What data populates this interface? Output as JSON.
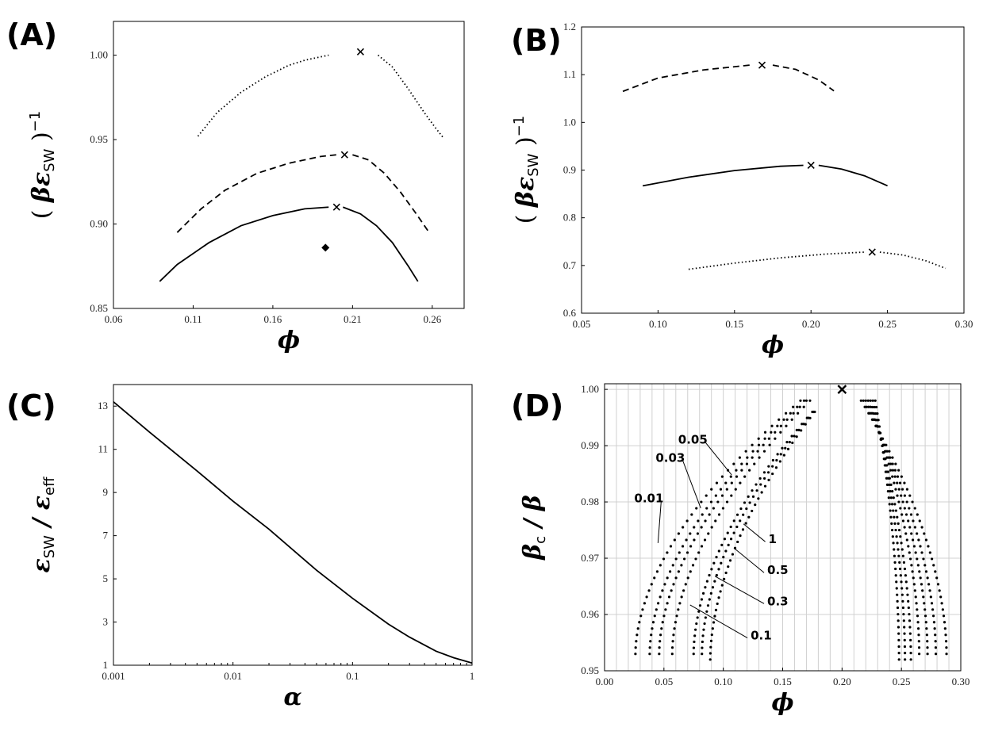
{
  "chart_data": [
    {
      "panel": "(A)",
      "type": "line",
      "xlim": [
        0.06,
        0.28
      ],
      "ylim": [
        0.85,
        1.02
      ],
      "xticks": [
        "0.06",
        "0.11",
        "0.16",
        "0.21",
        "0.26"
      ],
      "yticks": [
        "0.85",
        "0.90",
        "0.95",
        "1.00"
      ],
      "xlabel": "ϕ",
      "ylabel": {
        "left": "( ",
        "var": "βε",
        "sub": "SW",
        "right": " )",
        "sup": "−1"
      },
      "series": [
        {
          "style": "dotted",
          "left": {
            "x": [
              0.113,
              0.125,
              0.14,
              0.155,
              0.17,
              0.18,
              0.195
            ],
            "y": [
              0.952,
              0.966,
              0.978,
              0.987,
              0.994,
              0.997,
              1.0
            ]
          },
          "right": {
            "x": [
              0.226,
              0.235,
              0.245,
              0.255,
              0.262,
              0.267
            ],
            "y": [
              1.0,
              0.993,
              0.98,
              0.966,
              0.957,
              0.951
            ]
          },
          "critical": {
            "x": 0.215,
            "y": 1.002
          }
        },
        {
          "style": "dashed",
          "left": {
            "x": [
              0.1,
              0.115,
              0.13,
              0.15,
              0.17,
              0.19,
              0.2
            ],
            "y": [
              0.895,
              0.909,
              0.92,
              0.93,
              0.936,
              0.94,
              0.941
            ]
          },
          "right": {
            "x": [
              0.21,
              0.22,
              0.23,
              0.24,
              0.25,
              0.258
            ],
            "y": [
              0.941,
              0.938,
              0.93,
              0.919,
              0.906,
              0.895
            ]
          },
          "critical": {
            "x": 0.205,
            "y": 0.941
          }
        },
        {
          "style": "solid",
          "left": {
            "x": [
              0.089,
              0.1,
              0.12,
              0.14,
              0.16,
              0.18,
              0.195
            ],
            "y": [
              0.866,
              0.876,
              0.889,
              0.899,
              0.905,
              0.909,
              0.91
            ]
          },
          "right": {
            "x": [
              0.204,
              0.215,
              0.225,
              0.235,
              0.245,
              0.251
            ],
            "y": [
              0.91,
              0.906,
              0.899,
              0.889,
              0.875,
              0.866
            ]
          },
          "critical": {
            "x": 0.2,
            "y": 0.91
          }
        }
      ],
      "marker": {
        "shape": "diamond",
        "x": 0.193,
        "y": 0.886
      }
    },
    {
      "panel": "(B)",
      "type": "line",
      "xlim": [
        0.05,
        0.3
      ],
      "ylim": [
        0.6,
        1.2
      ],
      "xticks": [
        "0.05",
        "0.10",
        "0.15",
        "0.20",
        "0.25",
        "0.30"
      ],
      "yticks": [
        "0.6",
        "0.7",
        "0.8",
        "0.9",
        "1.0",
        "1.1",
        "1.2"
      ],
      "xlabel": "ϕ",
      "ylabel": {
        "left": "( ",
        "var": "βε",
        "sub": "SW",
        "right": " )",
        "sup": "−1"
      },
      "series": [
        {
          "style": "dashed",
          "left": {
            "x": [
              0.077,
              0.1,
              0.13,
              0.16
            ],
            "y": [
              1.065,
              1.093,
              1.11,
              1.12
            ]
          },
          "right": {
            "x": [
              0.175,
              0.19,
              0.205,
              0.215
            ],
            "y": [
              1.12,
              1.111,
              1.089,
              1.066
            ]
          },
          "critical": {
            "x": 0.168,
            "y": 1.12
          }
        },
        {
          "style": "solid",
          "left": {
            "x": [
              0.09,
              0.12,
              0.15,
              0.18,
              0.195
            ],
            "y": [
              0.867,
              0.885,
              0.899,
              0.908,
              0.91
            ]
          },
          "right": {
            "x": [
              0.205,
              0.22,
              0.235,
              0.25
            ],
            "y": [
              0.91,
              0.902,
              0.888,
              0.867
            ]
          },
          "critical": {
            "x": 0.2,
            "y": 0.91
          }
        },
        {
          "style": "dotted",
          "left": {
            "x": [
              0.12,
              0.15,
              0.18,
              0.21,
              0.235
            ],
            "y": [
              0.692,
              0.705,
              0.716,
              0.724,
              0.728
            ]
          },
          "right": {
            "x": [
              0.245,
              0.26,
              0.275,
              0.288
            ],
            "y": [
              0.728,
              0.722,
              0.71,
              0.694
            ]
          },
          "critical": {
            "x": 0.24,
            "y": 0.728
          }
        }
      ]
    },
    {
      "panel": "(C)",
      "type": "line",
      "xscale": "log",
      "xlim": [
        0.001,
        1
      ],
      "ylim": [
        1,
        14
      ],
      "xticks": [
        "0.001",
        "0.01",
        "0.1",
        "1"
      ],
      "yticks": [
        "1",
        "3",
        "5",
        "7",
        "9",
        "11",
        "13"
      ],
      "xlabel": "α",
      "ylabel": {
        "var": "ε",
        "sub": "SW",
        "mid": " / ",
        "var2": "ε",
        "sub2": "eff"
      },
      "series": [
        {
          "style": "solid",
          "x": [
            0.001,
            0.002,
            0.005,
            0.01,
            0.02,
            0.05,
            0.1,
            0.2,
            0.3,
            0.5,
            0.7,
            1.0
          ],
          "y": [
            13.2,
            11.8,
            10.0,
            8.6,
            7.3,
            5.4,
            4.1,
            2.9,
            2.3,
            1.65,
            1.35,
            1.1
          ]
        }
      ]
    },
    {
      "panel": "(D)",
      "type": "scatter",
      "xlim": [
        0.0,
        0.3
      ],
      "ylim": [
        0.95,
        1.001
      ],
      "xticks": [
        "0.00",
        "0.05",
        "0.10",
        "0.15",
        "0.20",
        "0.25",
        "0.30"
      ],
      "yticks": [
        "0.95",
        "0.96",
        "0.97",
        "0.98",
        "0.99",
        "1.00"
      ],
      "grid": true,
      "xlabel": "ϕ",
      "ylabel": {
        "var": "β",
        "sub": "c",
        "mid": " / ",
        "var2": "β"
      },
      "critical": {
        "x": 0.2,
        "y": 1.0
      },
      "branches": [
        {
          "label": "0.01",
          "left": [
            0.026,
            0.953,
            0.165,
            0.998
          ],
          "right": [
            0.288,
            0.953,
            0.216,
            0.998
          ]
        },
        {
          "label": "0.03",
          "left": [
            0.038,
            0.953,
            0.168,
            0.998
          ],
          "right": [
            0.279,
            0.953,
            0.218,
            0.998
          ]
        },
        {
          "label": "0.05",
          "left": [
            0.046,
            0.953,
            0.17,
            0.998
          ],
          "right": [
            0.272,
            0.953,
            0.22,
            0.998
          ]
        },
        {
          "label": "0.1",
          "left": [
            0.057,
            0.953,
            0.173,
            0.998
          ],
          "right": [
            0.265,
            0.953,
            0.222,
            0.998
          ]
        },
        {
          "label": "0.3",
          "left": [
            0.075,
            0.953,
            0.175,
            0.996
          ],
          "right": [
            0.258,
            0.952,
            0.224,
            0.998
          ]
        },
        {
          "label": "0.5",
          "left": [
            0.082,
            0.953,
            0.176,
            0.996
          ],
          "right": [
            0.253,
            0.952,
            0.226,
            0.998
          ]
        },
        {
          "label": "1",
          "left": [
            0.089,
            0.952,
            0.177,
            0.996
          ],
          "right": [
            0.248,
            0.952,
            0.228,
            0.998
          ]
        }
      ],
      "annotations": [
        {
          "text": "0.05",
          "tx": 0.062,
          "ty": 0.9912,
          "px": 0.107,
          "py": 0.9848
        },
        {
          "text": "0.03",
          "tx": 0.043,
          "ty": 0.988,
          "px": 0.081,
          "py": 0.9789
        },
        {
          "text": "0.01",
          "tx": 0.025,
          "ty": 0.9808,
          "px": 0.045,
          "py": 0.9727
        },
        {
          "text": "1",
          "tx": 0.138,
          "ty": 0.9735,
          "px": 0.117,
          "py": 0.9761
        },
        {
          "text": "0.5",
          "tx": 0.137,
          "ty": 0.968,
          "px": 0.109,
          "py": 0.9718
        },
        {
          "text": "0.3",
          "tx": 0.137,
          "ty": 0.9625,
          "px": 0.093,
          "py": 0.9668
        },
        {
          "text": "0.1",
          "tx": 0.123,
          "ty": 0.9564,
          "px": 0.072,
          "py": 0.9617
        }
      ]
    }
  ]
}
